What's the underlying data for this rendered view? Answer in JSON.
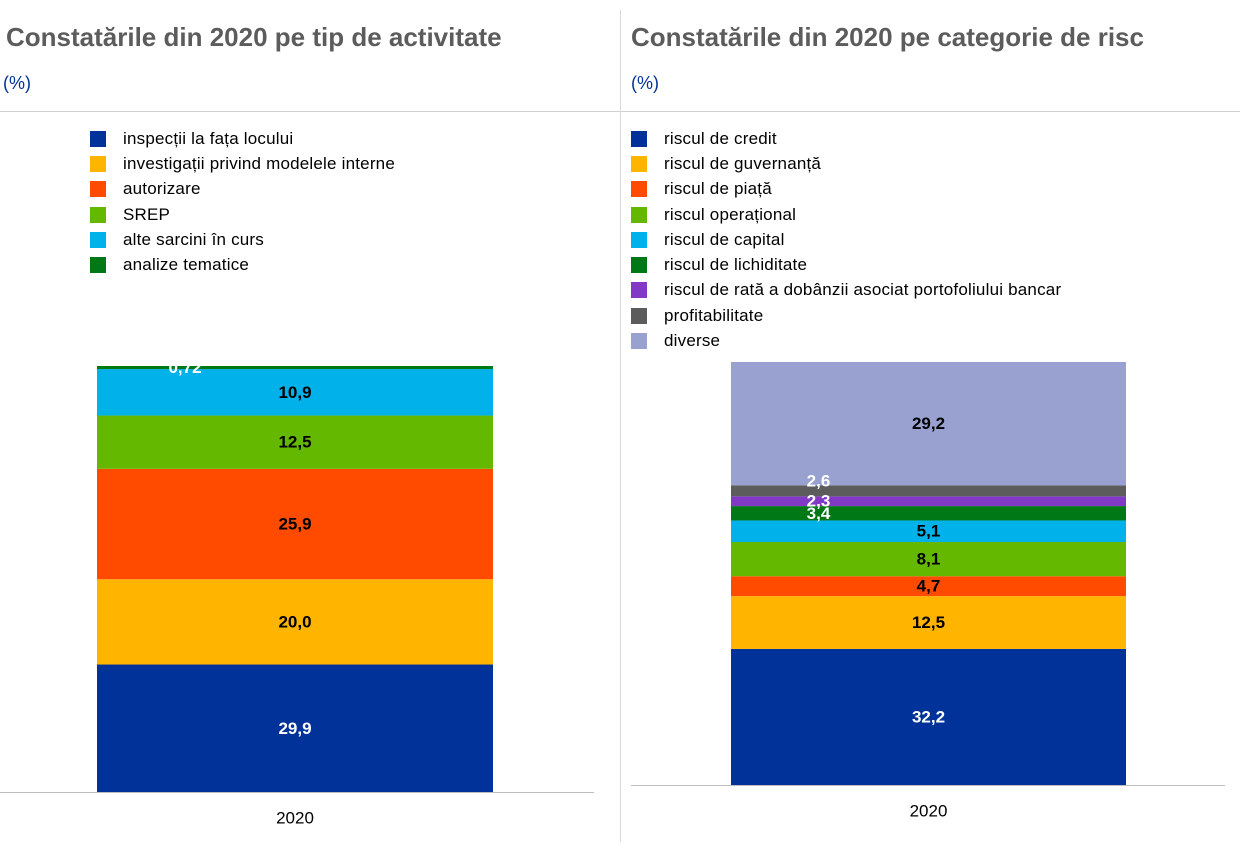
{
  "colors": {
    "blue": "#003299",
    "yellow": "#ffb400",
    "orange": "#ff4b00",
    "green": "#65b800",
    "cyan": "#00b1ea",
    "darkgreen": "#007816",
    "purple": "#8139c6",
    "grey": "#5c5c5c",
    "lavender": "#98a1d0"
  },
  "chart_data": [
    {
      "type": "bar",
      "stacked": true,
      "title": "Constatările din 2020 pe tip de activitate",
      "subtitle": "(%)",
      "categories": [
        "2020"
      ],
      "series": [
        {
          "name": "inspecții la fața locului",
          "values": [
            29.9
          ],
          "label": "29,9",
          "color": "#003299",
          "label_color": "#ffffff"
        },
        {
          "name": "investigații privind modelele interne",
          "values": [
            20.0
          ],
          "label": "20,0",
          "color": "#ffb400",
          "label_color": "#000000"
        },
        {
          "name": "autorizare",
          "values": [
            25.9
          ],
          "label": "25,9",
          "color": "#ff4b00",
          "label_color": "#000000"
        },
        {
          "name": "SREP",
          "values": [
            12.5
          ],
          "label": "12,5",
          "color": "#65b800",
          "label_color": "#000000"
        },
        {
          "name": "alte sarcini în curs",
          "values": [
            10.9
          ],
          "label": "10,9",
          "color": "#00b1ea",
          "label_color": "#000000"
        },
        {
          "name": "analize tematice",
          "values": [
            0.72
          ],
          "label": "0,72",
          "color": "#007816",
          "label_color": "#ffffff",
          "label_placement": "offset-left"
        }
      ],
      "legend": "top-left",
      "grid": false,
      "ylim": [
        0,
        100
      ]
    },
    {
      "type": "bar",
      "stacked": true,
      "title": "Constatările din 2020 pe categorie de risc",
      "subtitle": "(%)",
      "categories": [
        "2020"
      ],
      "series": [
        {
          "name": "riscul de credit",
          "values": [
            32.2
          ],
          "label": "32,2",
          "color": "#003299",
          "label_color": "#ffffff"
        },
        {
          "name": "riscul de guvernanță",
          "values": [
            12.5
          ],
          "label": "12,5",
          "color": "#ffb400",
          "label_color": "#000000"
        },
        {
          "name": "riscul de piață",
          "values": [
            4.7
          ],
          "label": "4,7",
          "color": "#ff4b00",
          "label_color": "#000000"
        },
        {
          "name": "riscul operațional",
          "values": [
            8.1
          ],
          "label": "8,1",
          "color": "#65b800",
          "label_color": "#000000"
        },
        {
          "name": "riscul de capital",
          "values": [
            5.1
          ],
          "label": "5,1",
          "color": "#00b1ea",
          "label_color": "#000000"
        },
        {
          "name": "riscul de lichiditate",
          "values": [
            3.4
          ],
          "label": "3,4",
          "color": "#007816",
          "label_color": "#ffffff",
          "label_placement": "offset-left"
        },
        {
          "name": "riscul de rată a dobânzii asociat portofoliului bancar",
          "values": [
            2.3
          ],
          "label": "2,3",
          "color": "#8139c6",
          "label_color": "#ffffff",
          "label_placement": "offset-left"
        },
        {
          "name": "profitabilitate",
          "values": [
            2.6
          ],
          "label": "2,6",
          "color": "#5c5c5c",
          "label_color": "#ffffff",
          "label_placement": "offset-left-above"
        },
        {
          "name": "diverse",
          "values": [
            29.2
          ],
          "label": "29,2",
          "color": "#98a1d0",
          "label_color": "#000000"
        }
      ],
      "legend": "top-left",
      "grid": false,
      "ylim": [
        0,
        100
      ]
    }
  ]
}
